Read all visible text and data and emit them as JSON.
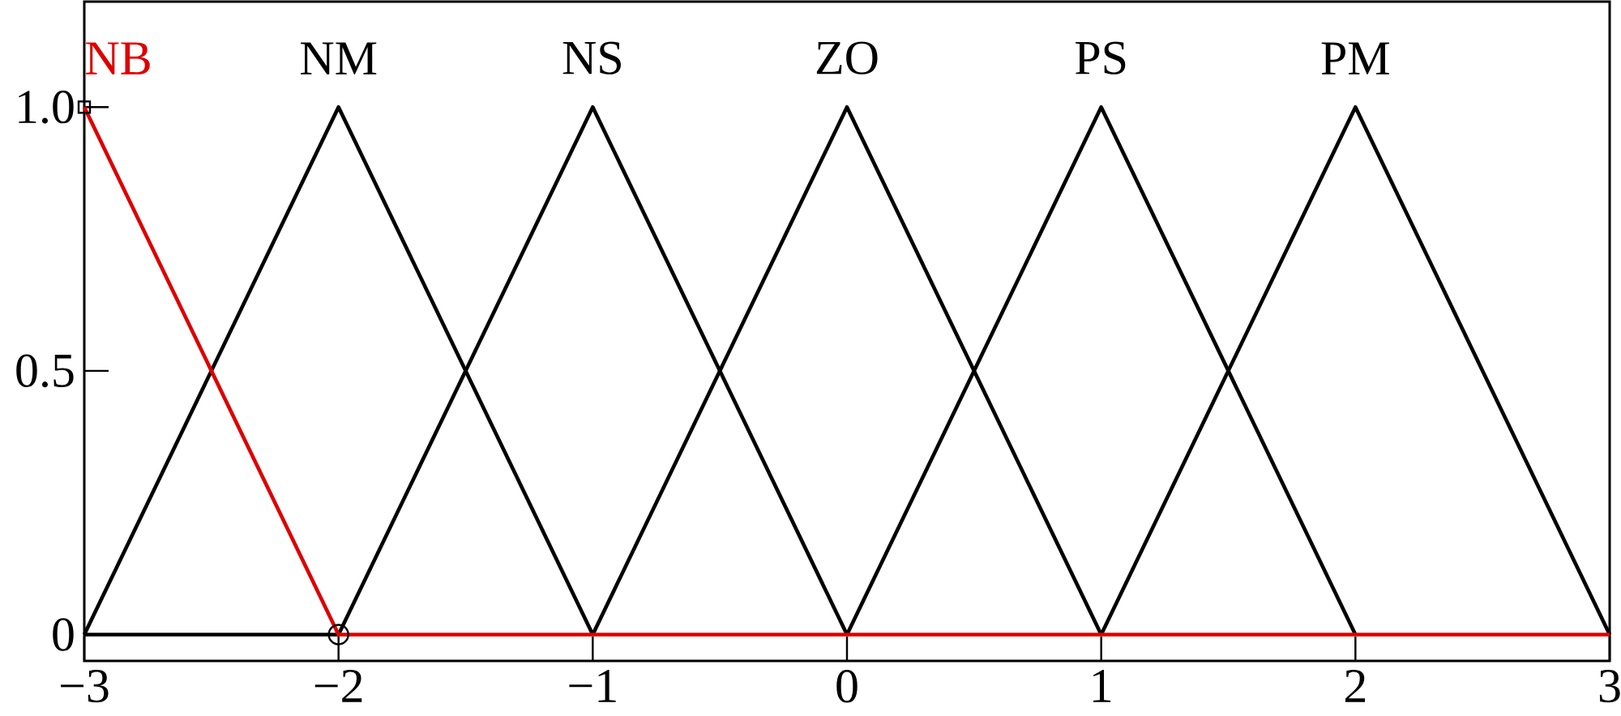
{
  "chart_data": {
    "type": "line",
    "xlim": [
      -3,
      3
    ],
    "ylim": [
      -0.05,
      1.2
    ],
    "xticks": [
      {
        "value": -3,
        "label": "−3"
      },
      {
        "value": -2,
        "label": "−2"
      },
      {
        "value": -1,
        "label": "−1"
      },
      0,
      1,
      2,
      3
    ],
    "yticks": [
      0,
      0.5,
      {
        "value": 1,
        "label": "1.0"
      }
    ],
    "series": [
      {
        "name": "NB",
        "color": "#dd0000",
        "x": [
          -3,
          -2,
          3
        ],
        "values": [
          1,
          0,
          0
        ]
      },
      {
        "name": "NM",
        "color": "#000000",
        "x": [
          -3,
          -2,
          -1
        ],
        "values": [
          0,
          1,
          0
        ]
      },
      {
        "name": "NS",
        "color": "#000000",
        "x": [
          -3,
          -2,
          -1,
          0
        ],
        "values": [
          0,
          0,
          1,
          0
        ]
      },
      {
        "name": "ZO",
        "color": "#000000",
        "x": [
          -1,
          0,
          1
        ],
        "values": [
          0,
          1,
          0
        ]
      },
      {
        "name": "PS",
        "color": "#000000",
        "x": [
          0,
          1,
          2
        ],
        "values": [
          0,
          1,
          0
        ]
      },
      {
        "name": "PM",
        "color": "#000000",
        "x": [
          1,
          2,
          3
        ],
        "values": [
          0,
          1,
          0
        ]
      },
      {
        "type": "scatter",
        "color": "#000000",
        "x": [
          -3
        ],
        "values": [
          1
        ],
        "marker": "square"
      },
      {
        "type": "scatter",
        "color": "#000000",
        "x": [
          -2
        ],
        "values": [
          0
        ],
        "marker": "circle"
      }
    ]
  }
}
